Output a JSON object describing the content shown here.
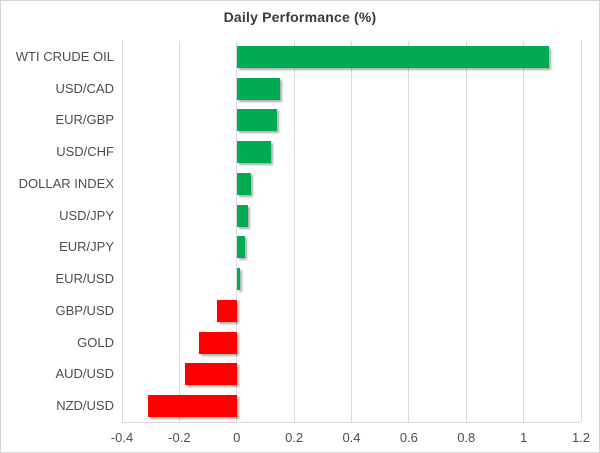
{
  "title": "Daily Performance (%)",
  "colors": {
    "positive": "#00AB51",
    "negative": "#FF0000",
    "grid": "#D9D9D9",
    "border": "#D5D5D5",
    "background": "#FFFFFF",
    "title_text": "#3B3B3B",
    "label_text": "#4D4D4D"
  },
  "chart_data": {
    "type": "bar",
    "orientation": "horizontal",
    "title": "Daily Performance (%)",
    "categories": [
      "WTI CRUDE OIL",
      "USD/CAD",
      "EUR/GBP",
      "USD/CHF",
      "DOLLAR INDEX",
      "USD/JPY",
      "EUR/JPY",
      "EUR/USD",
      "GBP/USD",
      "GOLD",
      "AUD/USD",
      "NZD/USD"
    ],
    "values": [
      1.09,
      0.15,
      0.14,
      0.12,
      0.05,
      0.04,
      0.03,
      0.01,
      -0.07,
      -0.13,
      -0.18,
      -0.31
    ],
    "xlabel": "",
    "ylabel": "",
    "xlim": [
      -0.4,
      1.2
    ],
    "xticks": [
      -0.4,
      -0.2,
      0,
      0.2,
      0.4,
      0.6,
      0.8,
      1,
      1.2
    ],
    "xtick_labels": [
      "-0.4",
      "-0.2",
      "0",
      "0.2",
      "0.4",
      "0.6",
      "0.8",
      "1",
      "1.2"
    ],
    "grid": true,
    "legend": false
  }
}
